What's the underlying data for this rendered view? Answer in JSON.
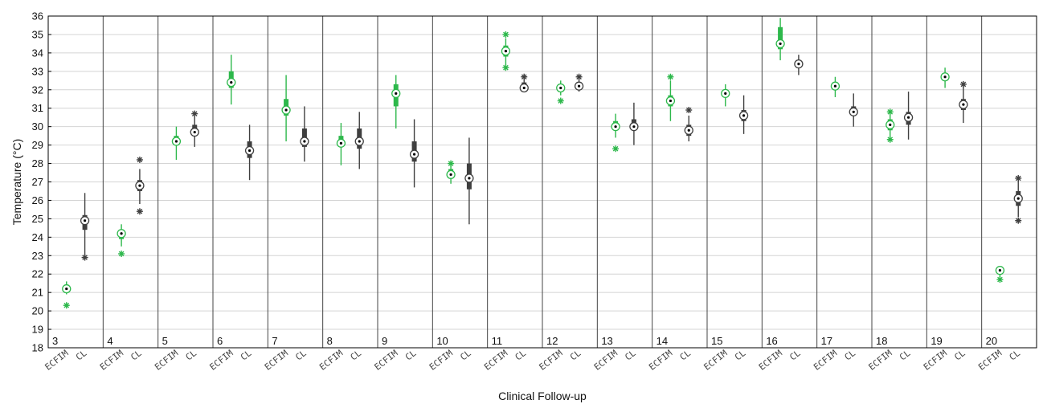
{
  "chart_data": {
    "type": "boxplot",
    "xlabel": "Clinical Follow-up",
    "ylabel": "Temperature (°C)",
    "ylim": [
      18,
      36
    ],
    "yticks": [
      18,
      19,
      20,
      21,
      22,
      23,
      24,
      25,
      26,
      27,
      28,
      29,
      30,
      31,
      32,
      33,
      34,
      35,
      36
    ],
    "grid": true,
    "categories": [
      "ECFIM",
      "CL"
    ],
    "colors": {
      "ECFIM": "#2db84b",
      "CL": "#3f3f3f"
    },
    "groups": [
      {
        "label": "3",
        "ECFIM": {
          "median": 21.2,
          "q1": 21.1,
          "q3": 21.3,
          "wlo": 20.9,
          "whi": 21.6,
          "outliers": [
            20.3
          ]
        },
        "CL": {
          "median": 24.9,
          "q1": 24.4,
          "q3": 25.2,
          "wlo": 23.0,
          "whi": 26.4,
          "outliers": [
            22.9
          ]
        }
      },
      {
        "label": "4",
        "ECFIM": {
          "median": 24.2,
          "q1": 23.9,
          "q3": 24.3,
          "wlo": 23.5,
          "whi": 24.7,
          "outliers": [
            23.1
          ]
        },
        "CL": {
          "median": 26.8,
          "q1": 26.5,
          "q3": 27.1,
          "wlo": 25.8,
          "whi": 27.7,
          "outliers": [
            25.4,
            28.2
          ]
        }
      },
      {
        "label": "5",
        "ECFIM": {
          "median": 29.2,
          "q1": 29.0,
          "q3": 29.5,
          "wlo": 28.2,
          "whi": 30.0,
          "outliers": []
        },
        "CL": {
          "median": 29.7,
          "q1": 29.5,
          "q3": 30.1,
          "wlo": 28.9,
          "whi": 30.6,
          "outliers": [
            30.7
          ]
        }
      },
      {
        "label": "6",
        "ECFIM": {
          "median": 32.4,
          "q1": 32.1,
          "q3": 33.0,
          "wlo": 31.2,
          "whi": 33.9,
          "outliers": []
        },
        "CL": {
          "median": 28.7,
          "q1": 28.3,
          "q3": 29.2,
          "wlo": 27.1,
          "whi": 30.1,
          "outliers": []
        }
      },
      {
        "label": "7",
        "ECFIM": {
          "median": 30.9,
          "q1": 30.6,
          "q3": 31.5,
          "wlo": 29.2,
          "whi": 32.8,
          "outliers": []
        },
        "CL": {
          "median": 29.2,
          "q1": 28.9,
          "q3": 29.9,
          "wlo": 28.1,
          "whi": 31.1,
          "outliers": []
        }
      },
      {
        "label": "8",
        "ECFIM": {
          "median": 29.1,
          "q1": 28.9,
          "q3": 29.5,
          "wlo": 27.9,
          "whi": 30.2,
          "outliers": []
        },
        "CL": {
          "median": 29.2,
          "q1": 28.8,
          "q3": 29.9,
          "wlo": 27.7,
          "whi": 30.8,
          "outliers": []
        }
      },
      {
        "label": "9",
        "ECFIM": {
          "median": 31.8,
          "q1": 31.1,
          "q3": 32.3,
          "wlo": 29.9,
          "whi": 32.8,
          "outliers": []
        },
        "CL": {
          "median": 28.5,
          "q1": 28.1,
          "q3": 29.2,
          "wlo": 26.7,
          "whi": 30.4,
          "outliers": []
        }
      },
      {
        "label": "10",
        "ECFIM": {
          "median": 27.4,
          "q1": 27.2,
          "q3": 27.7,
          "wlo": 26.9,
          "whi": 27.9,
          "outliers": [
            28.0
          ]
        },
        "CL": {
          "median": 27.2,
          "q1": 26.6,
          "q3": 28.0,
          "wlo": 24.7,
          "whi": 29.4,
          "outliers": []
        }
      },
      {
        "label": "11",
        "ECFIM": {
          "median": 34.1,
          "q1": 33.8,
          "q3": 34.4,
          "wlo": 33.3,
          "whi": 34.8,
          "outliers": [
            33.2,
            35.0
          ]
        },
        "CL": {
          "median": 32.1,
          "q1": 32.0,
          "q3": 32.4,
          "wlo": 31.9,
          "whi": 32.6,
          "outliers": [
            32.7
          ]
        }
      },
      {
        "label": "12",
        "ECFIM": {
          "median": 32.1,
          "q1": 31.9,
          "q3": 32.3,
          "wlo": 31.7,
          "whi": 32.5,
          "outliers": [
            31.4
          ]
        },
        "CL": {
          "median": 32.2,
          "q1": 32.0,
          "q3": 32.4,
          "wlo": 31.9,
          "whi": 32.6,
          "outliers": [
            32.7
          ]
        }
      },
      {
        "label": "13",
        "ECFIM": {
          "median": 30.0,
          "q1": 29.8,
          "q3": 30.3,
          "wlo": 29.4,
          "whi": 30.7,
          "outliers": [
            28.8
          ]
        },
        "CL": {
          "median": 30.0,
          "q1": 29.8,
          "q3": 30.4,
          "wlo": 29.0,
          "whi": 31.3,
          "outliers": []
        }
      },
      {
        "label": "14",
        "ECFIM": {
          "median": 31.4,
          "q1": 31.1,
          "q3": 31.7,
          "wlo": 30.3,
          "whi": 32.5,
          "outliers": [
            32.7
          ]
        },
        "CL": {
          "median": 29.8,
          "q1": 29.5,
          "q3": 30.1,
          "wlo": 29.2,
          "whi": 30.6,
          "outliers": [
            30.9
          ]
        }
      },
      {
        "label": "15",
        "ECFIM": {
          "median": 31.8,
          "q1": 31.6,
          "q3": 32.0,
          "wlo": 31.1,
          "whi": 32.3,
          "outliers": []
        },
        "CL": {
          "median": 30.6,
          "q1": 30.3,
          "q3": 30.9,
          "wlo": 29.6,
          "whi": 31.7,
          "outliers": []
        }
      },
      {
        "label": "16",
        "ECFIM": {
          "median": 34.5,
          "q1": 34.2,
          "q3": 35.4,
          "wlo": 33.6,
          "whi": 35.9,
          "outliers": []
        },
        "CL": {
          "median": 33.4,
          "q1": 33.2,
          "q3": 33.6,
          "wlo": 32.8,
          "whi": 33.9,
          "outliers": []
        }
      },
      {
        "label": "17",
        "ECFIM": {
          "median": 32.2,
          "q1": 32.0,
          "q3": 32.4,
          "wlo": 31.6,
          "whi": 32.7,
          "outliers": []
        },
        "CL": {
          "median": 30.8,
          "q1": 30.6,
          "q3": 31.1,
          "wlo": 30.0,
          "whi": 31.8,
          "outliers": []
        }
      },
      {
        "label": "18",
        "ECFIM": {
          "median": 30.1,
          "q1": 29.8,
          "q3": 30.4,
          "wlo": 29.3,
          "whi": 30.8,
          "outliers": [
            29.3,
            30.8
          ]
        },
        "CL": {
          "median": 30.5,
          "q1": 30.1,
          "q3": 30.8,
          "wlo": 29.3,
          "whi": 31.9,
          "outliers": []
        }
      },
      {
        "label": "19",
        "ECFIM": {
          "median": 32.7,
          "q1": 32.5,
          "q3": 32.9,
          "wlo": 32.1,
          "whi": 33.2,
          "outliers": []
        },
        "CL": {
          "median": 31.2,
          "q1": 30.9,
          "q3": 31.5,
          "wlo": 30.2,
          "whi": 32.3,
          "outliers": [
            32.3
          ]
        }
      },
      {
        "label": "20",
        "ECFIM": {
          "median": 22.2,
          "q1": 22.0,
          "q3": 22.3,
          "wlo": 21.8,
          "whi": 22.4,
          "outliers": [
            21.7
          ]
        },
        "CL": {
          "median": 26.1,
          "q1": 25.7,
          "q3": 26.5,
          "wlo": 25.1,
          "whi": 27.1,
          "outliers": [
            24.9,
            27.2
          ]
        }
      }
    ]
  }
}
